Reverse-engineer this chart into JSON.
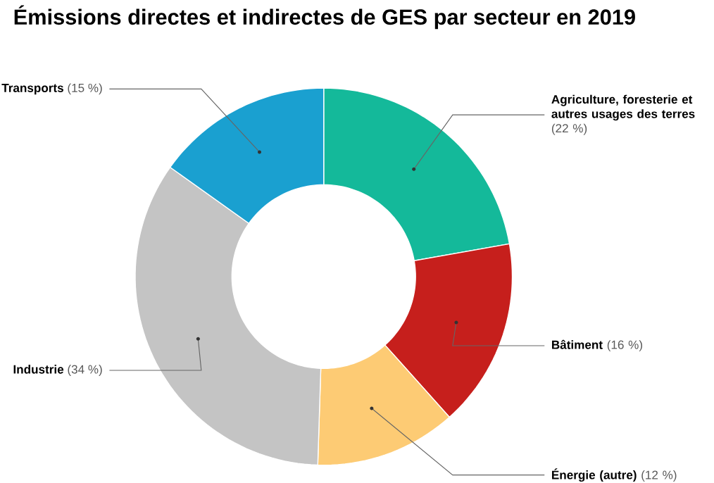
{
  "chart_data": {
    "type": "donut",
    "title": "Émissions directes et indirectes de GES par secteur en 2019",
    "categories": [
      "Agriculture, foresterie et autres usages des terres",
      "Bâtiment",
      "Énergie (autre)",
      "Industrie",
      "Transports"
    ],
    "values": [
      22,
      16,
      12,
      34,
      15
    ],
    "value_labels": [
      "(22 %)",
      "(16 %)",
      "(12 %)",
      "(34 %)",
      "(15 %)"
    ],
    "colors": [
      "#14b99a",
      "#c61f1c",
      "#fdcb74",
      "#c4c4c4",
      "#1aa0d0"
    ]
  }
}
